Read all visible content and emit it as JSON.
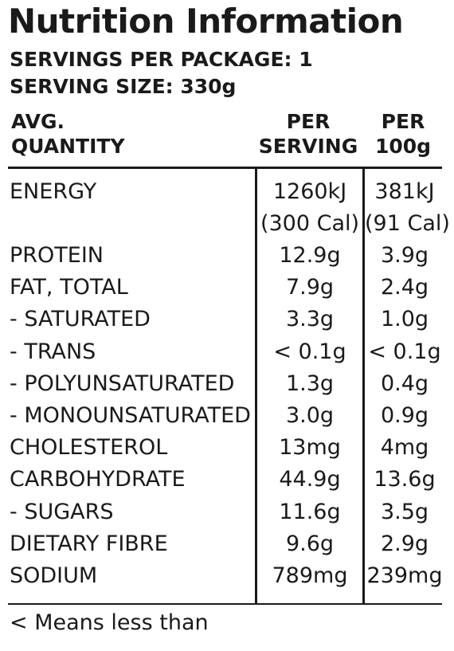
{
  "panel": {
    "title": "Nutrition Information",
    "servings_per_package": "SERVINGS PER PACKAGE: 1",
    "serving_size": "SERVING SIZE: 330g"
  },
  "table": {
    "headers": {
      "quantity_line1": "AVG.",
      "quantity_line2": "QUANTITY",
      "per_serving_line1": "PER",
      "per_serving_line2": "SERVING",
      "per_100g_line1": "PER",
      "per_100g_line2": "100g"
    },
    "rows": [
      {
        "name": "ENERGY",
        "per_serving": "1260kJ",
        "per_serving_2": "(300 Cal)",
        "per_100g": "381kJ",
        "per_100g_2": "(91 Cal)"
      },
      {
        "name": "PROTEIN",
        "per_serving": "12.9g",
        "per_100g": "3.9g"
      },
      {
        "name": "FAT, TOTAL",
        "per_serving": "7.9g",
        "per_100g": "2.4g"
      },
      {
        "name": "- SATURATED",
        "per_serving": "3.3g",
        "per_100g": "1.0g"
      },
      {
        "name": "- TRANS",
        "per_serving": "< 0.1g",
        "per_100g": "< 0.1g"
      },
      {
        "name": "- POLYUNSATURATED",
        "per_serving": "1.3g",
        "per_100g": "0.4g"
      },
      {
        "name": "- MONOUNSATURATED",
        "per_serving": "3.0g",
        "per_100g": "0.9g"
      },
      {
        "name": "CHOLESTEROL",
        "per_serving": "13mg",
        "per_100g": "4mg"
      },
      {
        "name": "CARBOHYDRATE",
        "per_serving": "44.9g",
        "per_100g": "13.6g"
      },
      {
        "name": "- SUGARS",
        "per_serving": "11.6g",
        "per_100g": "3.5g"
      },
      {
        "name": "DIETARY FIBRE",
        "per_serving": "9.6g",
        "per_100g": "2.9g"
      },
      {
        "name": "SODIUM",
        "per_serving": "789mg",
        "per_100g": "239mg"
      }
    ]
  },
  "footnote": "< Means less than"
}
